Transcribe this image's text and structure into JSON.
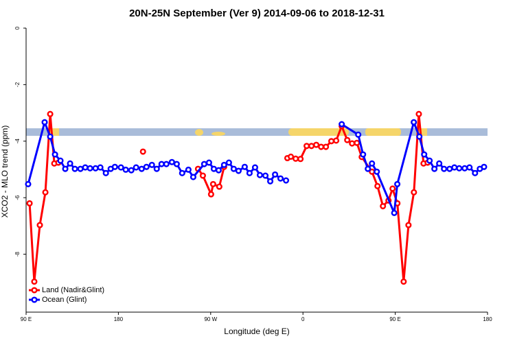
{
  "chart_data": {
    "type": "line",
    "title": "20N-25N September (Ver 9)   2014-09-06 to 2018-12-31",
    "x_label": "Longitude (deg E)",
    "y_label": "XCO2 - MLO trend (ppm)",
    "xlim": [
      90,
      540
    ],
    "ylim": [
      -10.05,
      0
    ],
    "xticks": [
      {
        "value": 90,
        "label": "90 E"
      },
      180,
      {
        "value": 270,
        "label": "90 W"
      },
      {
        "value": 360,
        "label": "0"
      },
      {
        "value": 450,
        "label": "90 E"
      },
      {
        "value": 540,
        "label": "180"
      }
    ],
    "yticks": [
      0,
      -2,
      -4,
      -6,
      -8
    ],
    "legend": "bottomleft",
    "series": [
      {
        "name": "Land (Nadir&Glint)",
        "color": "#ff0000",
        "x": [
          93.4,
          98.0,
          103.4,
          108.8,
          113.5,
          117.5,
          121.5,
          null,
          204,
          null,
          257.7,
          262.4,
          270.4,
          272.4,
          278.4,
          283.1,
          null,
          344.8,
          348.2,
          352.9,
          357.6,
          363.6,
          368.3,
          373.0,
          377.7,
          382.4,
          387.7,
          392.4,
          397.8,
          403.2,
          407.9,
          412.6,
          417.3,
          427.3,
          432.7,
          438.0,
          443.4,
          447.4,
          452.1,
          458.2,
          462.9,
          468.2,
          473.0,
          477.6,
          481.6
        ],
        "values": [
          -6.2,
          -8.97,
          -6.97,
          -5.81,
          -3.04,
          -4.79,
          -4.76,
          null,
          -4.37,
          null,
          -4.98,
          -5.22,
          -5.88,
          -5.52,
          -5.61,
          -4.91,
          null,
          -4.6,
          -4.55,
          -4.62,
          -4.63,
          -4.17,
          -4.17,
          -4.13,
          -4.2,
          -4.2,
          -4.0,
          -3.98,
          -3.47,
          -3.96,
          -4.08,
          -4.06,
          -4.56,
          -5.08,
          -5.59,
          -6.3,
          -6.1,
          -5.68,
          -6.2,
          -8.97,
          -6.97,
          -5.81,
          -3.04,
          -4.79,
          -4.76
        ]
      },
      {
        "name": "Ocean (Glint)",
        "color": "#0000ff",
        "x": [
          92.0,
          108.1,
          113.5,
          118.2,
          123.5,
          128.2,
          132.9,
          137.6,
          143.0,
          147.7,
          152.4,
          157.7,
          162.4,
          167.8,
          172.5,
          176.6,
          182.5,
          187.2,
          192.6,
          197.3,
          202.7,
          207.4,
          212.7,
          217.4,
          222.1,
          226.8,
          232.2,
          236.9,
          242.2,
          248.3,
          253.0,
          263.7,
          268.4,
          273.1,
          277.8,
          283.1,
          287.8,
          292.5,
          297.2,
          303.2,
          307.9,
          313.3,
          318.0,
          323.4,
          328.1,
          332.8,
          338.1,
          343.5,
          null,
          397.8,
          413.9,
          418.6,
          423.3,
          427.3,
          432.0,
          449.0,
          452.0,
          468.1,
          473.5,
          478.2,
          483.5,
          488.2,
          492.9,
          497.6,
          503.0,
          507.7,
          512.4,
          517.7,
          522.4,
          527.8,
          532.5,
          536.6
        ],
        "values": [
          -5.52,
          -3.33,
          -3.84,
          -4.47,
          -4.69,
          -4.98,
          -4.79,
          -4.98,
          -4.98,
          -4.93,
          -4.96,
          -4.96,
          -4.93,
          -5.13,
          -4.98,
          -4.91,
          -4.93,
          -5.01,
          -5.03,
          -4.93,
          -4.98,
          -4.91,
          -4.84,
          -4.98,
          -4.81,
          -4.81,
          -4.74,
          -4.81,
          -5.13,
          -5.01,
          -5.27,
          -4.81,
          -4.76,
          -4.98,
          -5.03,
          -4.84,
          -4.76,
          -4.98,
          -5.05,
          -4.91,
          -5.13,
          -4.93,
          -5.2,
          -5.22,
          -5.42,
          -5.18,
          -5.32,
          -5.39,
          null,
          -3.4,
          -3.77,
          -4.47,
          -4.98,
          -4.79,
          -5.08,
          -6.54,
          -5.52,
          -3.33,
          -3.84,
          -4.47,
          -4.69,
          -4.98,
          -4.79,
          -4.98,
          -4.98,
          -4.93,
          -4.96,
          -4.96,
          -4.93,
          -5.13,
          -4.98,
          -4.91
        ]
      }
    ]
  }
}
